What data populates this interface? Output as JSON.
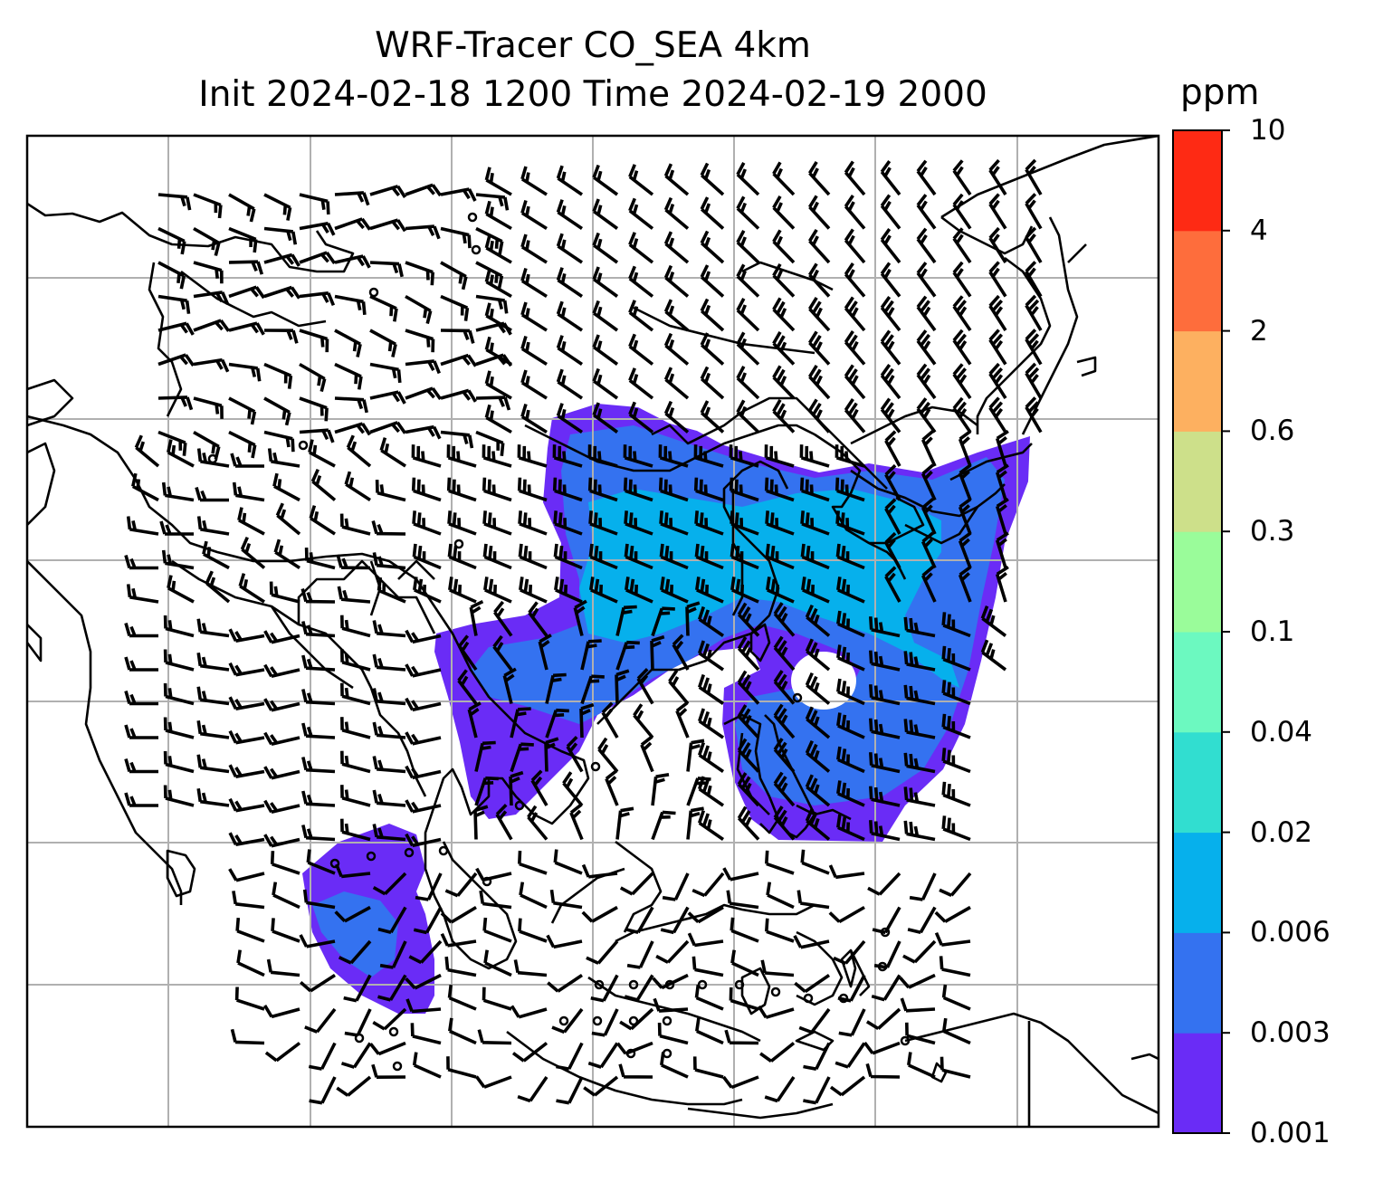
{
  "title": {
    "line1": "WRF-Tracer CO_SEA 4km",
    "line2": "Init 2024-02-18 1200 Time 2024-02-19 2000"
  },
  "colorbar": {
    "unit": "ppm",
    "levels": [
      "0.001",
      "0.003",
      "0.006",
      "0.02",
      "0.04",
      "0.1",
      "0.3",
      "0.6",
      "2",
      "4",
      "10"
    ],
    "colors": [
      "#6a2cf6",
      "#3472f0",
      "#06b0ec",
      "#31ded0",
      "#6cf9c0",
      "#9afc9a",
      "#cde08a",
      "#fdb060",
      "#fe6d3c",
      "#fe2a14"
    ]
  },
  "map": {
    "type": "filled contour map with wind barbs",
    "tracer": "CO_SEA",
    "resolution": "4km",
    "gridlines": true,
    "coastline_color": "#000000",
    "grid_color": "#b0b0b0",
    "barb_color": "#000000"
  }
}
